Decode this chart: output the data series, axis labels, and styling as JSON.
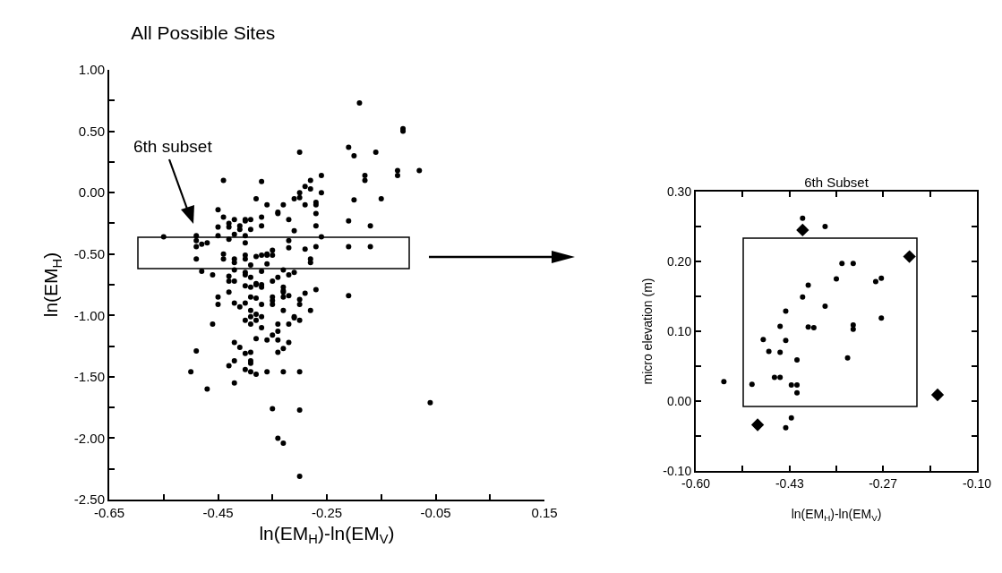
{
  "chart_data": [
    {
      "type": "scatter",
      "title": "All Possible Sites",
      "xlabel": "ln(EM$_{H}$)-ln(EM$_{V}$)",
      "ylabel": "ln(EM$_{H}$)",
      "marker": "circle",
      "xlim": [
        -0.65,
        0.15
      ],
      "xticks": [
        -0.65,
        {
          "value": -0.55,
          "label": null
        },
        -0.45,
        {
          "value": -0.35,
          "label": null
        },
        -0.25,
        {
          "value": -0.15,
          "label": null
        },
        -0.05,
        {
          "value": 0.05,
          "label": null
        },
        0.15
      ],
      "ylim": [
        -2.5,
        1.0
      ],
      "yticks": [
        {
          "value": -2.5,
          "label": "-2.50"
        },
        {
          "value": -2.25,
          "label": null
        },
        {
          "value": -2.0,
          "label": "-2.00"
        },
        {
          "value": -1.75,
          "label": null
        },
        {
          "value": -1.5,
          "label": "-1.50"
        },
        {
          "value": -1.25,
          "label": null
        },
        {
          "value": -1.0,
          "label": "-1.00"
        },
        {
          "value": -0.75,
          "label": null
        },
        {
          "value": -0.5,
          "label": "-0.50"
        },
        {
          "value": -0.25,
          "label": null
        },
        {
          "value": 0,
          "label": "0.00"
        },
        {
          "value": 0.25,
          "label": null
        },
        {
          "value": 0.5,
          "label": "0.50"
        },
        {
          "value": 0.75,
          "label": null
        },
        {
          "value": 1.0,
          "label": "1.00"
        }
      ],
      "annotations": [
        "6th subset"
      ],
      "series": [
        {
          "color": "#000000",
          "x": [
            -0.44,
            -0.37,
            -0.38,
            -0.36,
            -0.33,
            -0.45,
            -0.34,
            -0.34,
            -0.44,
            -0.43,
            -0.42,
            -0.4,
            -0.4,
            -0.39,
            -0.37,
            -0.32,
            -0.45,
            -0.43,
            -0.41,
            -0.41,
            -0.39,
            -0.37,
            -0.31,
            -0.55,
            -0.49,
            -0.49,
            -0.49,
            -0.45,
            -0.42,
            -0.4,
            -0.43,
            -0.48,
            -0.47,
            -0.4,
            -0.32,
            -0.32,
            -0.49,
            -0.44,
            -0.44,
            -0.42,
            -0.42,
            -0.4,
            -0.4,
            -0.38,
            -0.37,
            -0.36,
            -0.36,
            -0.35,
            -0.35,
            -0.39,
            -0.36,
            -0.48,
            -0.46,
            -0.42,
            -0.4,
            -0.37,
            -0.33,
            -0.43,
            -0.43,
            -0.42,
            -0.4,
            -0.39,
            -0.38,
            -0.4,
            -0.39,
            -0.38,
            -0.37,
            -0.37,
            -0.35,
            -0.33,
            -0.33,
            -0.43,
            -0.45,
            -0.39,
            -0.38,
            -0.35,
            -0.32,
            -0.42,
            -0.4,
            -0.45,
            -0.41,
            -0.37,
            -0.35,
            -0.35,
            -0.33,
            -0.39,
            -0.4,
            -0.39,
            -0.38,
            -0.37,
            -0.38,
            -0.33,
            -0.39,
            -0.37,
            -0.34,
            -0.32,
            -0.31,
            -0.46,
            -0.34,
            -0.35,
            -0.36,
            -0.38,
            -0.34,
            -0.32,
            -0.33,
            -0.34,
            -0.42,
            -0.41,
            -0.39,
            -0.4,
            -0.49,
            -0.42,
            -0.39,
            -0.39,
            -0.43,
            -0.4,
            -0.39,
            -0.38,
            -0.36,
            -0.33,
            -0.5,
            -0.42,
            -0.47,
            -0.35,
            -0.34,
            -0.33,
            -0.19,
            -0.11,
            -0.11,
            -0.21,
            -0.3,
            -0.2,
            -0.16,
            -0.08,
            -0.12,
            -0.12,
            -0.18,
            -0.18,
            -0.26,
            -0.28,
            -0.29,
            -0.28,
            -0.26,
            -0.3,
            -0.3,
            -0.31,
            -0.2,
            -0.15,
            -0.27,
            -0.27,
            -0.29,
            -0.27,
            -0.21,
            -0.27,
            -0.17,
            -0.26,
            -0.21,
            -0.17,
            -0.27,
            -0.29,
            -0.28,
            -0.28,
            -0.31,
            -0.32,
            -0.34,
            -0.27,
            -0.33,
            -0.3,
            -0.3,
            -0.29,
            -0.21,
            -0.28,
            -0.31,
            -0.3,
            -0.3,
            -0.3,
            -0.3,
            -0.06
          ],
          "values": [
            0.1,
            0.09,
            -0.05,
            -0.1,
            -0.1,
            -0.14,
            -0.16,
            -0.17,
            -0.2,
            -0.25,
            -0.22,
            -0.22,
            -0.23,
            -0.22,
            -0.2,
            -0.22,
            -0.28,
            -0.28,
            -0.27,
            -0.3,
            -0.3,
            -0.27,
            -0.31,
            -0.36,
            -0.35,
            -0.39,
            -0.44,
            -0.35,
            -0.34,
            -0.35,
            -0.38,
            -0.42,
            -0.41,
            -0.41,
            -0.39,
            -0.45,
            -0.54,
            -0.5,
            -0.54,
            -0.54,
            -0.57,
            -0.51,
            -0.54,
            -0.52,
            -0.51,
            -0.51,
            -0.5,
            -0.47,
            -0.51,
            -0.59,
            -0.58,
            -0.64,
            -0.67,
            -0.63,
            -0.65,
            -0.64,
            -0.63,
            -0.68,
            -0.72,
            -0.72,
            -0.67,
            -0.69,
            -0.74,
            -0.76,
            -0.77,
            -0.75,
            -0.75,
            -0.77,
            -0.72,
            -0.77,
            -0.8,
            -0.81,
            -0.85,
            -0.85,
            -0.86,
            -0.85,
            -0.84,
            -0.9,
            -0.9,
            -0.91,
            -0.93,
            -0.91,
            -0.91,
            -0.88,
            -0.85,
            -0.96,
            -1.04,
            -1.01,
            -0.99,
            -1.01,
            -1.04,
            -0.96,
            -1.07,
            -1.1,
            -1.07,
            -1.07,
            -1.02,
            -1.07,
            -1.13,
            -1.16,
            -1.2,
            -1.19,
            -1.2,
            -1.22,
            -1.27,
            -1.3,
            -1.22,
            -1.26,
            -1.3,
            -1.31,
            -1.29,
            -1.37,
            -1.37,
            -1.39,
            -1.41,
            -1.44,
            -1.46,
            -1.48,
            -1.46,
            -1.46,
            -1.46,
            -1.55,
            -1.6,
            -1.76,
            -2.0,
            -2.04,
            0.73,
            0.52,
            0.5,
            0.37,
            0.33,
            0.3,
            0.33,
            0.18,
            0.18,
            0.14,
            0.14,
            0.1,
            0.14,
            0.1,
            0.05,
            0.03,
            0.0,
            0.0,
            -0.04,
            -0.05,
            -0.06,
            -0.05,
            -0.08,
            -0.1,
            -0.1,
            -0.17,
            -0.23,
            -0.27,
            -0.27,
            -0.36,
            -0.44,
            -0.44,
            -0.44,
            -0.46,
            -0.54,
            -0.57,
            -0.65,
            -0.67,
            -0.69,
            -0.79,
            -0.81,
            -0.87,
            -0.91,
            -0.82,
            -0.84,
            -0.96,
            -1.01,
            -1.04,
            -1.46,
            -1.77,
            -2.31,
            -1.71
          ]
        }
      ]
    },
    {
      "type": "scatter",
      "title": "6th Subset",
      "xlabel": "ln(EM$_{H}$)-ln(EM$_{V}$)",
      "ylabel": "micro elevation (m)",
      "marker": "circle",
      "xlim": [
        -0.6,
        -0.1
      ],
      "xticks": [
        {
          "value": -0.6,
          "label": "-0.60"
        },
        {
          "value": -0.517,
          "label": null
        },
        {
          "value": -0.433,
          "label": "-0.43"
        },
        {
          "value": -0.35,
          "label": null
        },
        {
          "value": -0.267,
          "label": "-0.27"
        },
        {
          "value": -0.183,
          "label": null
        },
        {
          "value": -0.1,
          "label": "-0.10"
        }
      ],
      "ylim": [
        -0.1,
        0.3
      ],
      "yticks": [
        {
          "value": -0.1,
          "label": "-0.10"
        },
        {
          "value": -0.05,
          "label": null
        },
        {
          "value": 0,
          "label": "0.00"
        },
        {
          "value": 0.05,
          "label": null
        },
        {
          "value": 0.1,
          "label": "0.10"
        },
        {
          "value": 0.15,
          "label": null
        },
        {
          "value": 0.2,
          "label": "0.20"
        },
        {
          "value": 0.25,
          "label": null
        },
        {
          "value": 0.3,
          "label": "0.30"
        }
      ],
      "series": [
        {
          "color": "#000000",
          "x": [
            -0.41,
            -0.37,
            -0.34,
            -0.32,
            -0.35,
            -0.28,
            -0.27,
            -0.4,
            -0.41,
            -0.37,
            -0.44,
            -0.27,
            -0.32,
            -0.32,
            -0.4,
            -0.39,
            -0.45,
            -0.48,
            -0.44,
            -0.47,
            -0.45,
            -0.33,
            -0.42,
            -0.55,
            -0.46,
            -0.45,
            -0.5,
            -0.43,
            -0.42,
            -0.42,
            -0.43,
            -0.44
          ],
          "values": [
            0.262,
            0.25,
            0.197,
            0.197,
            0.175,
            0.171,
            0.176,
            0.166,
            0.149,
            0.136,
            0.129,
            0.119,
            0.109,
            0.103,
            0.106,
            0.105,
            0.107,
            0.088,
            0.087,
            0.071,
            0.07,
            0.062,
            0.059,
            0.028,
            0.034,
            0.034,
            0.024,
            0.023,
            0.023,
            0.012,
            -0.024,
            -0.038
          ]
        },
        {
          "color": "#000000",
          "marker": "diamond",
          "x": [
            -0.41,
            -0.22,
            -0.17,
            -0.49
          ],
          "values": [
            0.245,
            0.207,
            0.009,
            -0.034
          ]
        }
      ]
    }
  ]
}
